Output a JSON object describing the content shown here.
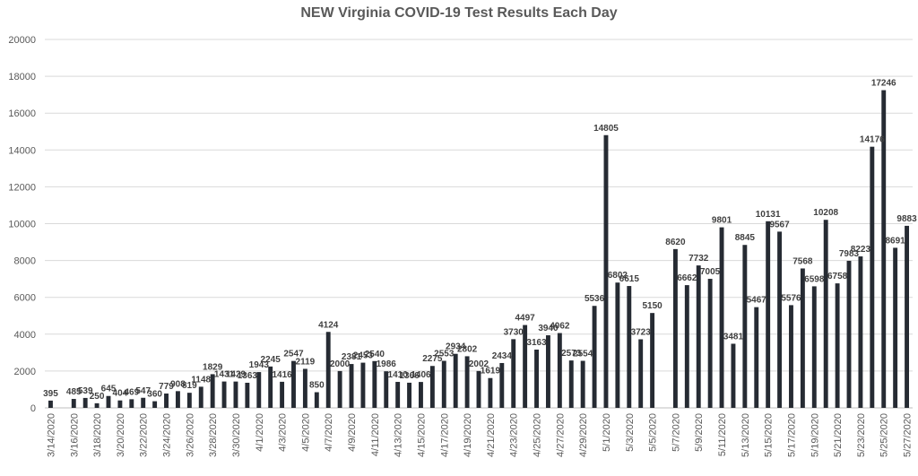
{
  "chart_data": {
    "type": "bar",
    "title": "NEW Virginia COVID-19 Test Results Each Day",
    "xlabel": "",
    "ylabel": "",
    "ylim": [
      0,
      20000
    ],
    "yticks": [
      0,
      2000,
      4000,
      6000,
      8000,
      10000,
      12000,
      14000,
      16000,
      18000,
      20000
    ],
    "grid": true,
    "legend": "none",
    "bar_color": "#262b33",
    "categories": [
      "3/14/2020",
      "3/15/2020",
      "3/16/2020",
      "3/17/2020",
      "3/18/2020",
      "3/19/2020",
      "3/20/2020",
      "3/21/2020",
      "3/22/2020",
      "3/23/2020",
      "3/24/2020",
      "3/25/2020",
      "3/26/2020",
      "3/27/2020",
      "3/28/2020",
      "3/29/2020",
      "3/30/2020",
      "3/31/2020",
      "4/1/2020",
      "4/2/2020",
      "4/3/2020",
      "4/4/2020",
      "4/5/2020",
      "4/6/2020",
      "4/7/2020",
      "4/8/2020",
      "4/9/2020",
      "4/10/2020",
      "4/11/2020",
      "4/12/2020",
      "4/13/2020",
      "4/14/2020",
      "4/15/2020",
      "4/16/2020",
      "4/17/2020",
      "4/18/2020",
      "4/19/2020",
      "4/20/2020",
      "4/21/2020",
      "4/22/2020",
      "4/23/2020",
      "4/24/2020",
      "4/25/2020",
      "4/26/2020",
      "4/27/2020",
      "4/28/2020",
      "4/29/2020",
      "4/30/2020",
      "5/1/2020",
      "5/2/2020",
      "5/3/2020",
      "5/4/2020",
      "5/5/2020",
      "5/6/2020",
      "5/7/2020",
      "5/8/2020",
      "5/9/2020",
      "5/10/2020",
      "5/11/2020",
      "5/12/2020",
      "5/13/2020",
      "5/14/2020",
      "5/15/2020",
      "5/16/2020",
      "5/17/2020",
      "5/18/2020",
      "5/19/2020",
      "5/20/2020",
      "5/21/2020",
      "5/22/2020",
      "5/23/2020",
      "5/24/2020",
      "5/25/2020",
      "5/26/2020",
      "5/27/2020"
    ],
    "tick_labels": [
      "3/14/2020",
      "3/16/2020",
      "3/18/2020",
      "3/20/2020",
      "3/22/2020",
      "3/24/2020",
      "3/26/2020",
      "3/28/2020",
      "3/30/2020",
      "4/1/2020",
      "4/3/2020",
      "4/5/2020",
      "4/7/2020",
      "4/9/2020",
      "4/11/2020",
      "4/13/2020",
      "4/15/2020",
      "4/17/2020",
      "4/19/2020",
      "4/21/2020",
      "4/23/2020",
      "4/25/2020",
      "4/27/2020",
      "4/29/2020",
      "5/1/2020",
      "5/3/2020",
      "5/5/2020",
      "5/7/2020",
      "5/9/2020",
      "5/11/2020",
      "5/13/2020",
      "5/15/2020",
      "5/17/2020",
      "5/19/2020",
      "5/21/2020",
      "5/23/2020",
      "5/25/2020",
      "5/27/2020"
    ],
    "values": [
      395,
      null,
      485,
      539,
      250,
      645,
      404,
      469,
      547,
      360,
      779,
      908,
      819,
      1148,
      1829,
      1431,
      1429,
      1363,
      1943,
      2245,
      1416,
      2547,
      2119,
      850,
      4124,
      2000,
      2381,
      2453,
      2540,
      1986,
      1410,
      1366,
      1406,
      2275,
      2553,
      2934,
      2802,
      2002,
      1619,
      2434,
      3730,
      4497,
      3163,
      3940,
      4062,
      2573,
      2554,
      5536,
      14805,
      6802,
      6615,
      3723,
      5150,
      null,
      8620,
      6662,
      7732,
      7005,
      9801,
      3481,
      8845,
      5467,
      10131,
      9567,
      5576,
      7568,
      6598,
      10208,
      6758,
      7983,
      8223,
      14176,
      17246,
      8691,
      9883
    ]
  }
}
